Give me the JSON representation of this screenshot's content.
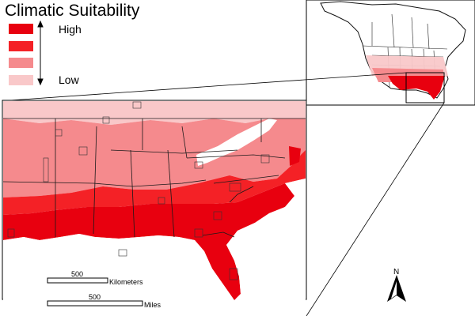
{
  "legend": {
    "title": "Climatic Suitability",
    "high_label": "High",
    "low_label": "Low",
    "classes": [
      {
        "level": 4,
        "color": "#e8000f"
      },
      {
        "level": 3,
        "color": "#f42126"
      },
      {
        "level": 2,
        "color": "#f58a8d"
      },
      {
        "level": 1,
        "color": "#f9c8c9"
      }
    ]
  },
  "scalebar": {
    "km_value": "500",
    "km_unit": "Kilometers",
    "mi_value": "500",
    "mi_unit": "Miles"
  },
  "north_arrow": {
    "label": "N",
    "icon": "north-arrow-icon"
  },
  "colors": {
    "high": "#e8000f",
    "mid_high": "#f42126",
    "mid_low": "#f58a8d",
    "low": "#f9c8c9",
    "unsuitable": "#ffffff",
    "outline": "#1a1a1a"
  }
}
